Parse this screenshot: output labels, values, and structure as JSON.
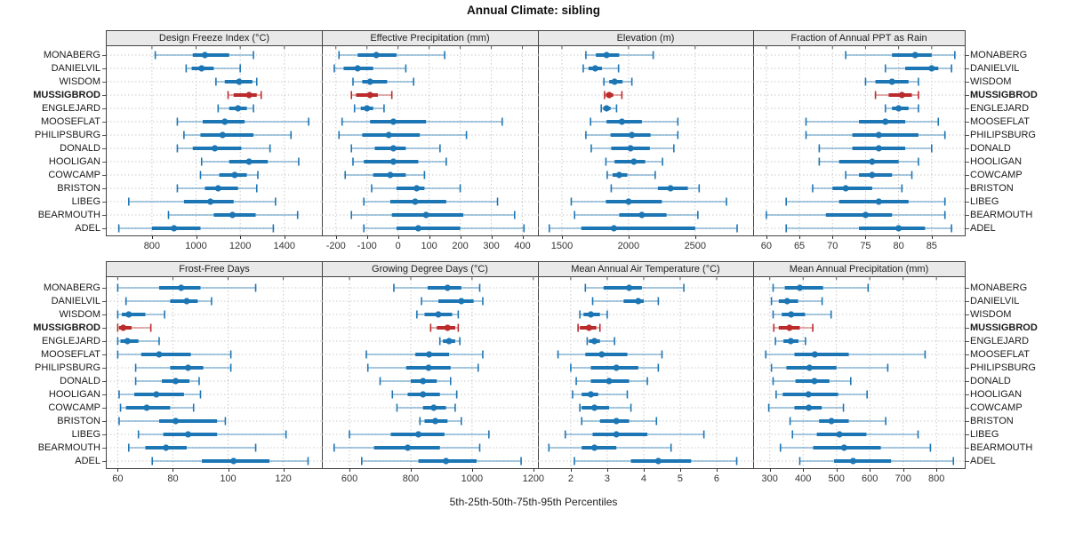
{
  "title": "Annual Climate: sibling",
  "colors": {
    "series_blue": "#1d76b4",
    "highlight_red": "#bb2b2b",
    "header_bg": "#e9e9e9",
    "grid": "#c9c9c9",
    "border": "#444444",
    "tick_text": "#333333"
  },
  "chart_data": {
    "type": "scatter",
    "subtype": "trellis-percentile-dotplot",
    "title": "Annual Climate: sibling",
    "xlabel": "5th-25th-50th-75th-95th Percentiles",
    "percentiles": [
      5,
      25,
      50,
      75,
      95
    ],
    "legend_position": "none",
    "grid": "dashed",
    "stations": [
      "MONABERG",
      "DANIELVIL",
      "WISDOM",
      "MUSSIGBROD",
      "ENGLEJARD",
      "MOOSEFLAT",
      "PHILIPSBURG",
      "DONALD",
      "HOOLIGAN",
      "COWCAMP",
      "BRISTON",
      "LIBEG",
      "BEARMOUTH",
      "ADEL"
    ],
    "highlight_station": "MUSSIGBROD",
    "panels": [
      {
        "label": "Design Freeze Index (°C)",
        "xlim": [
          595,
          1570
        ],
        "ticks": [
          800,
          1000,
          1200,
          1400
        ],
        "values": [
          [
            815,
            985,
            1040,
            1150,
            1260
          ],
          [
            955,
            980,
            1025,
            1080,
            1200
          ],
          [
            1090,
            1130,
            1195,
            1255,
            1275
          ],
          [
            1145,
            1170,
            1240,
            1275,
            1295
          ],
          [
            1100,
            1150,
            1190,
            1230,
            1260
          ],
          [
            915,
            1030,
            1130,
            1220,
            1510
          ],
          [
            945,
            1020,
            1120,
            1260,
            1430
          ],
          [
            915,
            985,
            1085,
            1205,
            1335
          ],
          [
            1025,
            1150,
            1240,
            1325,
            1465
          ],
          [
            1020,
            1105,
            1175,
            1230,
            1280
          ],
          [
            915,
            1040,
            1100,
            1190,
            1275
          ],
          [
            695,
            945,
            1065,
            1170,
            1360
          ],
          [
            875,
            1080,
            1165,
            1270,
            1460
          ],
          [
            650,
            800,
            900,
            1020,
            1350
          ]
        ]
      },
      {
        "label": "Effective Precipitation (mm)",
        "xlim": [
          -245,
          450
        ],
        "ticks": [
          -200,
          -100,
          0,
          100,
          200,
          300,
          400
        ],
        "values": [
          [
            -190,
            -130,
            -70,
            -5,
            150
          ],
          [
            -205,
            -175,
            -130,
            -80,
            25
          ],
          [
            -145,
            -115,
            -90,
            -35,
            50
          ],
          [
            -150,
            -135,
            -90,
            -65,
            -20
          ],
          [
            -140,
            -120,
            -100,
            -80,
            -45
          ],
          [
            -180,
            -90,
            -15,
            90,
            335
          ],
          [
            -190,
            -115,
            -30,
            70,
            220
          ],
          [
            -150,
            -75,
            -15,
            25,
            135
          ],
          [
            -145,
            -110,
            -15,
            65,
            155
          ],
          [
            -170,
            -80,
            -25,
            25,
            85
          ],
          [
            -85,
            -5,
            60,
            85,
            200
          ],
          [
            -110,
            -25,
            55,
            155,
            320
          ],
          [
            -150,
            -20,
            90,
            210,
            375
          ],
          [
            -110,
            -5,
            65,
            200,
            405
          ]
        ]
      },
      {
        "label": "Elevation (m)",
        "xlim": [
          1320,
          2935
        ],
        "ticks": [
          1500,
          2000,
          2500
        ],
        "values": [
          [
            1680,
            1755,
            1835,
            1930,
            2185
          ],
          [
            1660,
            1700,
            1750,
            1800,
            1925
          ],
          [
            1815,
            1855,
            1895,
            1955,
            2025
          ],
          [
            1820,
            1830,
            1855,
            1885,
            1950
          ],
          [
            1795,
            1810,
            1835,
            1865,
            1910
          ],
          [
            1715,
            1835,
            1950,
            2100,
            2370
          ],
          [
            1680,
            1865,
            2025,
            2165,
            2370
          ],
          [
            1720,
            1870,
            2015,
            2160,
            2340
          ],
          [
            1830,
            1895,
            2040,
            2125,
            2255
          ],
          [
            1840,
            1880,
            1930,
            1990,
            2200
          ],
          [
            1870,
            2220,
            2315,
            2445,
            2530
          ],
          [
            1570,
            1830,
            2000,
            2250,
            2735
          ],
          [
            1595,
            1930,
            2100,
            2285,
            2520
          ],
          [
            1405,
            1645,
            1890,
            2500,
            2815
          ]
        ]
      },
      {
        "label": "Fraction of Annual PPT as Rain",
        "xlim": [
          58,
          90
        ],
        "ticks": [
          60,
          65,
          70,
          75,
          80,
          85
        ],
        "values": [
          [
            72,
            79,
            82.5,
            85,
            88.5
          ],
          [
            78,
            81,
            85,
            86,
            88
          ],
          [
            75,
            76.5,
            79,
            81.5,
            83
          ],
          [
            76.5,
            78.5,
            80.5,
            82,
            83
          ],
          [
            78,
            79,
            80,
            81.5,
            83
          ],
          [
            66,
            74,
            78,
            81,
            86
          ],
          [
            66,
            73,
            77,
            83,
            87
          ],
          [
            68,
            73,
            77,
            81,
            85
          ],
          [
            68,
            71,
            76,
            80,
            83
          ],
          [
            72,
            74,
            76,
            79,
            82
          ],
          [
            67,
            70,
            72,
            76,
            80.5
          ],
          [
            63,
            71,
            77,
            81.5,
            87
          ],
          [
            60,
            69,
            75,
            79,
            87
          ],
          [
            63,
            74,
            80,
            84,
            88
          ]
        ]
      },
      {
        "label": "Frost-Free Days",
        "xlim": [
          56,
          134
        ],
        "ticks": [
          60,
          80,
          100,
          120
        ],
        "values": [
          [
            60,
            75,
            83,
            90,
            110
          ],
          [
            63,
            79,
            85,
            89,
            94
          ],
          [
            60,
            61.5,
            64,
            70,
            77
          ],
          [
            60,
            60.5,
            62,
            65,
            72
          ],
          [
            60,
            61,
            63.5,
            67.5,
            75
          ],
          [
            60,
            68.5,
            75,
            86.5,
            101
          ],
          [
            66.5,
            79,
            85.5,
            91,
            101
          ],
          [
            66.5,
            76,
            81,
            86,
            89.5
          ],
          [
            60.5,
            66,
            74,
            84,
            90
          ],
          [
            61,
            63,
            70.5,
            79,
            87.5
          ],
          [
            60.5,
            75,
            81,
            96,
            99
          ],
          [
            67.5,
            76.5,
            85.5,
            96,
            121
          ],
          [
            64,
            70,
            77.5,
            85,
            110
          ],
          [
            72.5,
            90.5,
            102,
            115,
            129
          ]
        ]
      },
      {
        "label": "Growing Degree Days (°C)",
        "xlim": [
          510,
          1215
        ],
        "ticks": [
          600,
          800,
          1000,
          1200
        ],
        "values": [
          [
            745,
            855,
            920,
            965,
            1025
          ],
          [
            835,
            890,
            965,
            1005,
            1035
          ],
          [
            820,
            845,
            890,
            935,
            955
          ],
          [
            865,
            885,
            920,
            945,
            955
          ],
          [
            895,
            905,
            925,
            945,
            960
          ],
          [
            655,
            815,
            860,
            925,
            1035
          ],
          [
            660,
            785,
            858,
            930,
            1020
          ],
          [
            700,
            800,
            840,
            885,
            930
          ],
          [
            740,
            790,
            840,
            895,
            950
          ],
          [
            755,
            840,
            875,
            915,
            945
          ],
          [
            830,
            845,
            880,
            920,
            965
          ],
          [
            600,
            735,
            825,
            910,
            1055
          ],
          [
            550,
            680,
            790,
            895,
            1025
          ],
          [
            640,
            825,
            915,
            1015,
            1160
          ]
        ]
      },
      {
        "label": "Mean Annual Air Temperature (°C)",
        "xlim": [
          1.1,
          7.0
        ],
        "ticks": [
          2,
          3,
          4,
          5,
          6
        ],
        "values": [
          [
            2.4,
            2.9,
            3.6,
            3.95,
            5.1
          ],
          [
            2.6,
            3.45,
            3.85,
            4.0,
            4.4
          ],
          [
            2.25,
            2.35,
            2.55,
            2.8,
            3.0
          ],
          [
            2.2,
            2.25,
            2.5,
            2.7,
            2.8
          ],
          [
            2.45,
            2.5,
            2.65,
            2.8,
            3.2
          ],
          [
            1.65,
            2.4,
            2.85,
            3.55,
            4.5
          ],
          [
            2.0,
            2.55,
            3.25,
            3.85,
            4.4
          ],
          [
            2.15,
            2.55,
            3.05,
            3.6,
            4.1
          ],
          [
            2.05,
            2.3,
            2.55,
            2.75,
            3.55
          ],
          [
            2.25,
            2.3,
            2.65,
            3.05,
            3.65
          ],
          [
            2.3,
            2.8,
            3.25,
            3.6,
            4.35
          ],
          [
            1.85,
            2.6,
            3.25,
            4.1,
            5.65
          ],
          [
            1.4,
            2.3,
            2.65,
            3.25,
            4.75
          ],
          [
            2.1,
            3.65,
            4.4,
            5.3,
            6.55
          ]
        ]
      },
      {
        "label": "Mean Annual Precipitation (mm)",
        "xlim": [
          250,
          885
        ],
        "ticks": [
          300,
          400,
          500,
          600,
          700,
          800
        ],
        "values": [
          [
            310,
            345,
            390,
            460,
            595
          ],
          [
            305,
            327,
            352,
            385,
            457
          ],
          [
            310,
            336,
            364,
            406,
            484
          ],
          [
            312,
            327,
            359,
            390,
            429
          ],
          [
            317,
            341,
            363,
            386,
            407
          ],
          [
            288,
            374,
            435,
            537,
            766
          ],
          [
            305,
            350,
            419,
            500,
            654
          ],
          [
            310,
            377,
            434,
            479,
            543
          ],
          [
            319,
            339,
            416,
            505,
            592
          ],
          [
            297,
            374,
            417,
            456,
            521
          ],
          [
            361,
            448,
            485,
            537,
            648
          ],
          [
            368,
            441,
            509,
            590,
            745
          ],
          [
            332,
            430,
            523,
            633,
            782
          ],
          [
            390,
            493,
            550,
            664,
            851
          ]
        ]
      }
    ]
  }
}
